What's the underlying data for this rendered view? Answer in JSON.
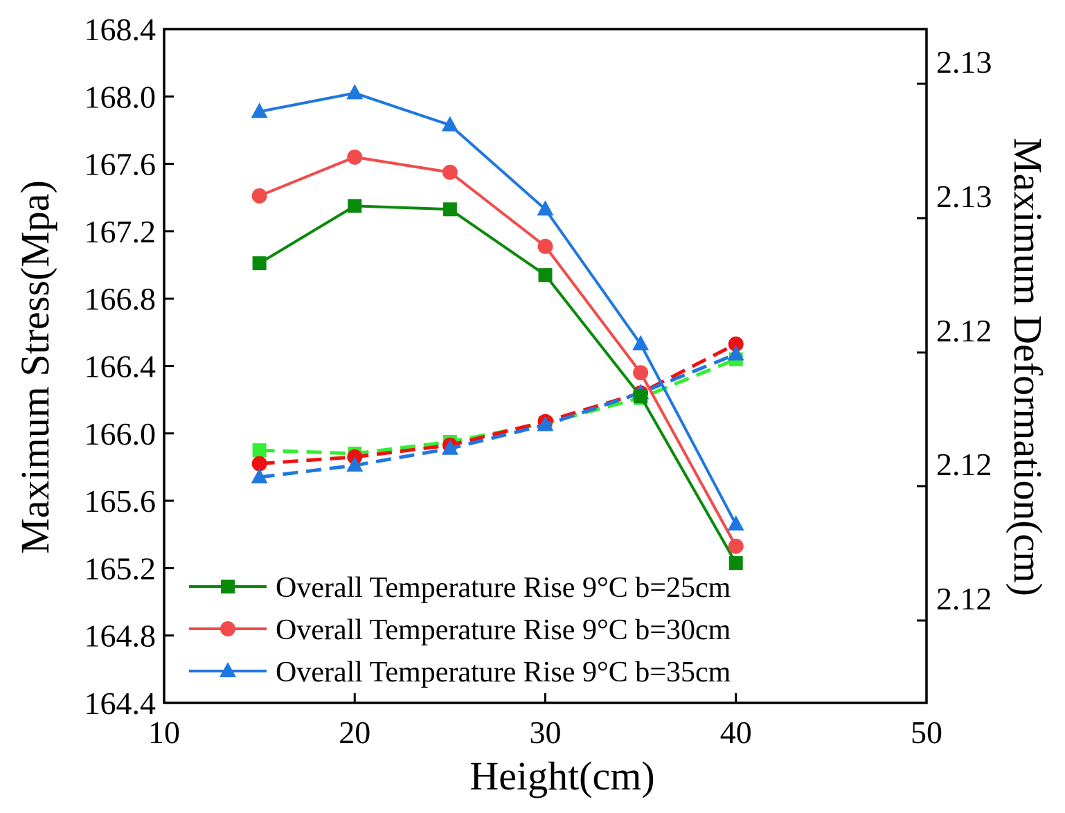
{
  "chart_data": {
    "type": "line",
    "xlabel": "Height(cm)",
    "ylabel_left": "Maximum Stress(Mpa)",
    "ylabel_right": "Maximum Deformation(cm)",
    "xlim": [
      10,
      50
    ],
    "ylim_left": [
      164.4,
      168.4
    ],
    "x_ticks": [
      "10",
      "20",
      "30",
      "40",
      "50"
    ],
    "y_left_ticks": [
      "164.4",
      "164.8",
      "165.2",
      "165.6",
      "166.0",
      "166.4",
      "166.8",
      "167.2",
      "167.6",
      "168.0",
      "168.4"
    ],
    "y_right_ticks": [
      "2.12",
      "2.12",
      "2.12",
      "2.13",
      "2.13"
    ],
    "grid": false,
    "legend_position": "bottom-left",
    "x": [
      15,
      20,
      25,
      30,
      35,
      40
    ],
    "series": [
      {
        "name": "Overall Temperature Rise 9°C b=25cm",
        "color": "#0a8a0a",
        "marker": "square",
        "values": [
          167.01,
          167.35,
          167.33,
          166.94,
          166.22,
          165.23
        ]
      },
      {
        "name": "Overall Temperature Rise 9°C b=30cm",
        "color": "#f24b4b",
        "marker": "circle",
        "values": [
          167.41,
          167.64,
          167.55,
          167.11,
          166.36,
          165.33
        ]
      },
      {
        "name": "Overall Temperature Rise 9°C b=35cm",
        "color": "#1f77e0",
        "marker": "triangle",
        "values": [
          167.91,
          168.02,
          167.83,
          167.33,
          166.53,
          165.46
        ]
      }
    ],
    "deformation_series": [
      {
        "color": "#33ee33",
        "marker": "square",
        "values": [
          165.9,
          165.88,
          165.95,
          166.06,
          166.21,
          166.44
        ]
      },
      {
        "color": "#ee1111",
        "marker": "circle",
        "values": [
          165.82,
          165.86,
          165.93,
          166.07,
          166.24,
          166.53
        ]
      },
      {
        "color": "#2277dd",
        "marker": "triangle",
        "values": [
          165.74,
          165.81,
          165.91,
          166.05,
          166.24,
          166.47
        ]
      }
    ]
  }
}
